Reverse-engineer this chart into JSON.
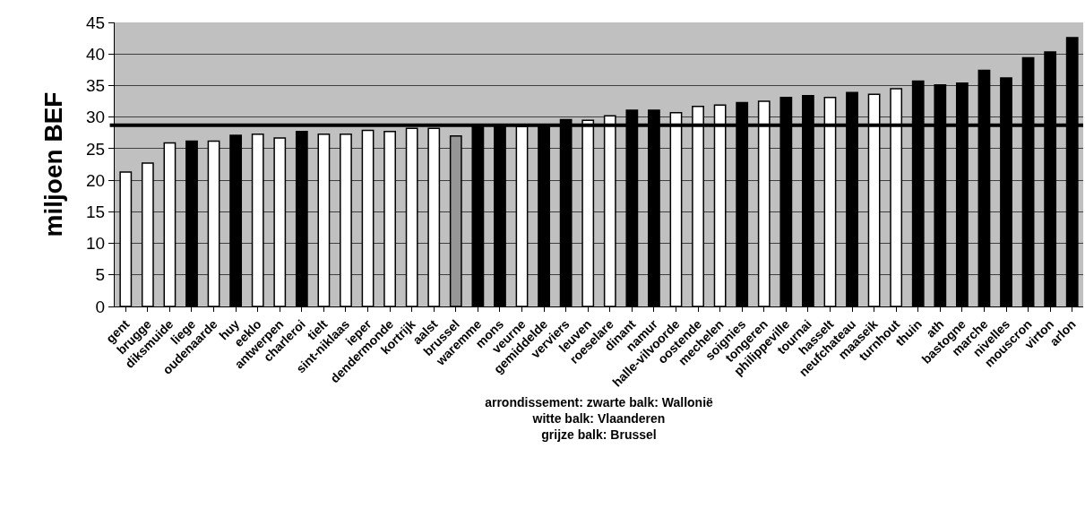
{
  "chart_data": {
    "type": "bar",
    "ylabel": "miljoen BEF",
    "xlabel": "arrondissement: zwarte balk: Wallonië\nwitte balk: Vlaanderen\ngrijze balk: Brussel",
    "categories": [
      "gent",
      "brugge",
      "diksmuide",
      "liege",
      "oudenaarde",
      "huy",
      "eeklo",
      "antwerpen",
      "charleroi",
      "tielt",
      "sint-niklaas",
      "ieper",
      "dendermonde",
      "kortrijk",
      "aalst",
      "brussel",
      "waremme",
      "mons",
      "veurne",
      "gemiddelde",
      "verviers",
      "leuven",
      "roeselare",
      "dinant",
      "namur",
      "halle-vilvoorde",
      "oostende",
      "mechelen",
      "soignies",
      "tongeren",
      "philippeville",
      "tournai",
      "hasselt",
      "neufchateau",
      "maaseik",
      "turnhout",
      "thuin",
      "ath",
      "bastogne",
      "marche",
      "nivelles",
      "mouscron",
      "virton",
      "arlon"
    ],
    "values": [
      21.3,
      22.7,
      25.9,
      26.2,
      26.2,
      27.1,
      27.3,
      26.7,
      27.7,
      27.3,
      27.3,
      27.9,
      27.7,
      28.2,
      28.2,
      27.0,
      28.7,
      28.7,
      28.5,
      28.7,
      29.6,
      29.5,
      30.2,
      31.1,
      31.1,
      30.7,
      31.7,
      31.9,
      32.3,
      32.5,
      33.1,
      33.4,
      33.1,
      33.9,
      33.6,
      34.5,
      35.7,
      35.1,
      35.4,
      37.4,
      36.2,
      39.4,
      40.3,
      42.6
    ],
    "colors": [
      "#ffffff",
      "#ffffff",
      "#ffffff",
      "#000000",
      "#ffffff",
      "#000000",
      "#ffffff",
      "#ffffff",
      "#000000",
      "#ffffff",
      "#ffffff",
      "#ffffff",
      "#ffffff",
      "#ffffff",
      "#ffffff",
      "#969696",
      "#000000",
      "#000000",
      "#ffffff",
      "#000000",
      "#000000",
      "#ffffff",
      "#ffffff",
      "#000000",
      "#000000",
      "#ffffff",
      "#ffffff",
      "#ffffff",
      "#000000",
      "#ffffff",
      "#000000",
      "#000000",
      "#ffffff",
      "#000000",
      "#ffffff",
      "#ffffff",
      "#000000",
      "#000000",
      "#000000",
      "#000000",
      "#000000",
      "#000000",
      "#000000",
      "#000000"
    ],
    "ylim": [
      0,
      45
    ],
    "yticks": [
      0,
      5,
      10,
      15,
      20,
      25,
      30,
      35,
      40,
      45
    ],
    "grid": "y",
    "ref_lines": [
      {
        "axis": "y",
        "value": 28.7,
        "color": "#000000",
        "line_style": "solid"
      }
    ]
  }
}
